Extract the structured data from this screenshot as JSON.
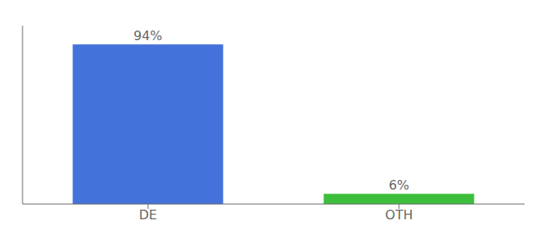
{
  "chart_data": {
    "type": "bar",
    "categories": [
      "DE",
      "OTH"
    ],
    "values": [
      94,
      6
    ],
    "value_labels": [
      "94%",
      "6%"
    ],
    "colors": [
      "#4472db",
      "#3dbf3d"
    ],
    "ylim": [
      0,
      105
    ],
    "tick_labels": "x",
    "data_labels": true
  }
}
